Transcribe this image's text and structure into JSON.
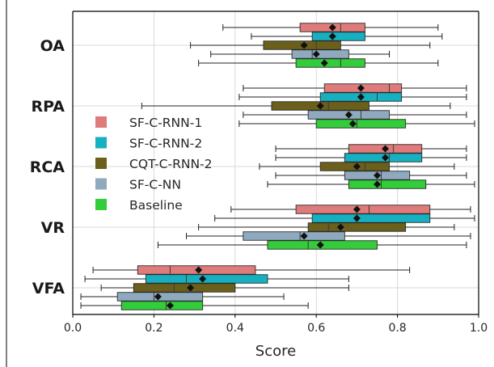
{
  "chart_data": {
    "type": "boxplot",
    "orientation": "horizontal",
    "xlabel": "Score",
    "ylabel": "",
    "xlim": [
      0.0,
      1.0
    ],
    "xticks": [
      "0.0",
      "0.2",
      "0.4",
      "0.6",
      "0.8",
      "1.0"
    ],
    "categories": [
      "OA",
      "RPA",
      "RCA",
      "VR",
      "VFA"
    ],
    "grid": true,
    "legend_position": "center-left",
    "series": [
      {
        "name": "SF-C-RNN-1",
        "color": "#e07b7b",
        "boxes": {
          "OA": {
            "whislo": 0.37,
            "q1": 0.56,
            "med": 0.66,
            "q3": 0.72,
            "whishi": 0.9,
            "mean": 0.64
          },
          "RPA": {
            "whislo": 0.42,
            "q1": 0.62,
            "med": 0.78,
            "q3": 0.81,
            "whishi": 0.97,
            "mean": 0.71
          },
          "RCA": {
            "whislo": 0.5,
            "q1": 0.68,
            "med": 0.79,
            "q3": 0.86,
            "whishi": 0.97,
            "mean": 0.77
          },
          "VR": {
            "whislo": 0.39,
            "q1": 0.55,
            "med": 0.73,
            "q3": 0.88,
            "whishi": 0.98,
            "mean": 0.7
          },
          "VFA": {
            "whislo": 0.05,
            "q1": 0.16,
            "med": 0.24,
            "q3": 0.45,
            "whishi": 0.83,
            "mean": 0.31
          }
        }
      },
      {
        "name": "SF-C-RNN-2",
        "color": "#17b0c0",
        "boxes": {
          "OA": {
            "whislo": 0.44,
            "q1": 0.59,
            "med": 0.64,
            "q3": 0.72,
            "whishi": 0.91,
            "mean": 0.64
          },
          "RPA": {
            "whislo": 0.41,
            "q1": 0.61,
            "med": 0.75,
            "q3": 0.81,
            "whishi": 0.97,
            "mean": 0.71
          },
          "RCA": {
            "whislo": 0.5,
            "q1": 0.67,
            "med": 0.78,
            "q3": 0.86,
            "whishi": 0.97,
            "mean": 0.77
          },
          "VR": {
            "whislo": 0.35,
            "q1": 0.59,
            "med": 0.7,
            "q3": 0.88,
            "whishi": 0.99,
            "mean": 0.7
          },
          "VFA": {
            "whislo": 0.03,
            "q1": 0.18,
            "med": 0.28,
            "q3": 0.48,
            "whishi": 0.68,
            "mean": 0.32
          }
        }
      },
      {
        "name": "CQT-C-RNN-2",
        "color": "#6b5f1c",
        "boxes": {
          "OA": {
            "whislo": 0.29,
            "q1": 0.47,
            "med": 0.6,
            "q3": 0.66,
            "whishi": 0.88,
            "mean": 0.57
          },
          "RPA": {
            "whislo": 0.17,
            "q1": 0.49,
            "med": 0.63,
            "q3": 0.73,
            "whishi": 0.93,
            "mean": 0.61
          },
          "RCA": {
            "whislo": 0.46,
            "q1": 0.61,
            "med": 0.72,
            "q3": 0.78,
            "whishi": 0.94,
            "mean": 0.7
          },
          "VR": {
            "whislo": 0.31,
            "q1": 0.58,
            "med": 0.63,
            "q3": 0.82,
            "whishi": 0.94,
            "mean": 0.66
          },
          "VFA": {
            "whislo": 0.07,
            "q1": 0.15,
            "med": 0.25,
            "q3": 0.4,
            "whishi": 0.68,
            "mean": 0.29
          }
        }
      },
      {
        "name": "SF-C-NN",
        "color": "#8fa9bf",
        "boxes": {
          "OA": {
            "whislo": 0.34,
            "q1": 0.54,
            "med": 0.59,
            "q3": 0.68,
            "whishi": 0.78,
            "mean": 0.6
          },
          "RPA": {
            "whislo": 0.42,
            "q1": 0.58,
            "med": 0.71,
            "q3": 0.78,
            "whishi": 0.97,
            "mean": 0.68
          },
          "RCA": {
            "whislo": 0.5,
            "q1": 0.67,
            "med": 0.76,
            "q3": 0.83,
            "whishi": 0.97,
            "mean": 0.75
          },
          "VR": {
            "whislo": 0.28,
            "q1": 0.42,
            "med": 0.56,
            "q3": 0.67,
            "whishi": 0.98,
            "mean": 0.57
          },
          "VFA": {
            "whislo": 0.02,
            "q1": 0.11,
            "med": 0.2,
            "q3": 0.32,
            "whishi": 0.52,
            "mean": 0.21
          }
        }
      },
      {
        "name": "Baseline",
        "color": "#33cc3a",
        "boxes": {
          "OA": {
            "whislo": 0.31,
            "q1": 0.55,
            "med": 0.66,
            "q3": 0.72,
            "whishi": 0.9,
            "mean": 0.62
          },
          "RPA": {
            "whislo": 0.41,
            "q1": 0.6,
            "med": 0.7,
            "q3": 0.82,
            "whishi": 0.99,
            "mean": 0.69
          },
          "RCA": {
            "whislo": 0.48,
            "q1": 0.68,
            "med": 0.76,
            "q3": 0.87,
            "whishi": 0.99,
            "mean": 0.75
          },
          "VR": {
            "whislo": 0.21,
            "q1": 0.48,
            "med": 0.58,
            "q3": 0.75,
            "whishi": 0.97,
            "mean": 0.61
          },
          "VFA": {
            "whislo": 0.02,
            "q1": 0.12,
            "med": 0.23,
            "q3": 0.32,
            "whishi": 0.58,
            "mean": 0.24
          }
        }
      }
    ]
  }
}
